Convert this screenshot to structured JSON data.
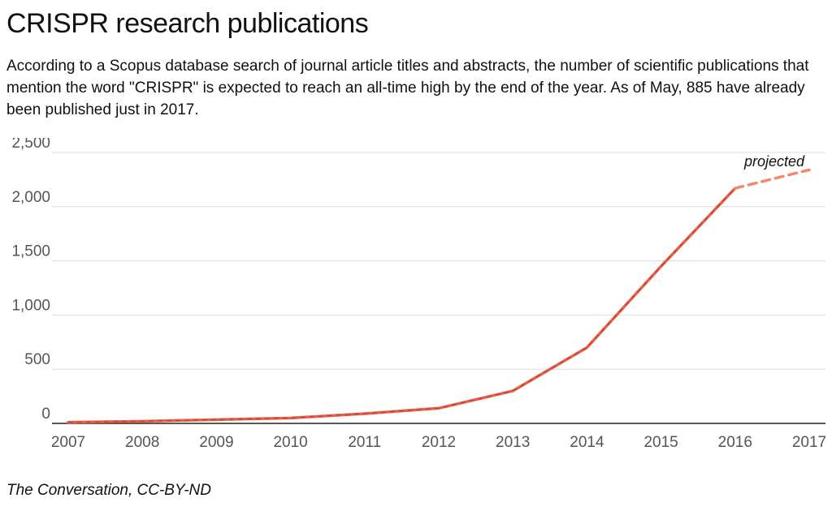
{
  "header": {
    "title": "CRISPR research publications",
    "subtitle": "According to a Scopus database search of journal article titles and abstracts, the number of scientific publications that mention the word \"CRISPR\" is expected to reach an all-time high by the end of the year. As of May, 885 have already been published just in 2017."
  },
  "footer": {
    "source": "The Conversation, CC-BY-ND"
  },
  "chart_data": {
    "type": "line",
    "x": [
      2007,
      2008,
      2009,
      2010,
      2011,
      2012,
      2013,
      2014,
      2015,
      2016,
      2017
    ],
    "series": [
      {
        "values": [
          10,
          20,
          35,
          50,
          90,
          140,
          300,
          700,
          1450,
          2170,
          2340
        ]
      }
    ],
    "projected_from": 2016,
    "annotations": [
      {
        "text": "projected",
        "x": 2017
      }
    ],
    "y_ticks": [
      0,
      500,
      1000,
      1500,
      2000,
      2500
    ],
    "y_tick_labels": [
      "0",
      "500",
      "1,000",
      "1,500",
      "2,000",
      "2,500"
    ],
    "x_tick_labels": [
      "2007",
      "2008",
      "2009",
      "2010",
      "2011",
      "2012",
      "2013",
      "2014",
      "2015",
      "2016",
      "2017"
    ],
    "ylim": [
      0,
      2500
    ],
    "xlim": [
      2007,
      2017
    ],
    "grid": true,
    "line_color": "#e8604c",
    "projected_color": "#f08a6c"
  }
}
